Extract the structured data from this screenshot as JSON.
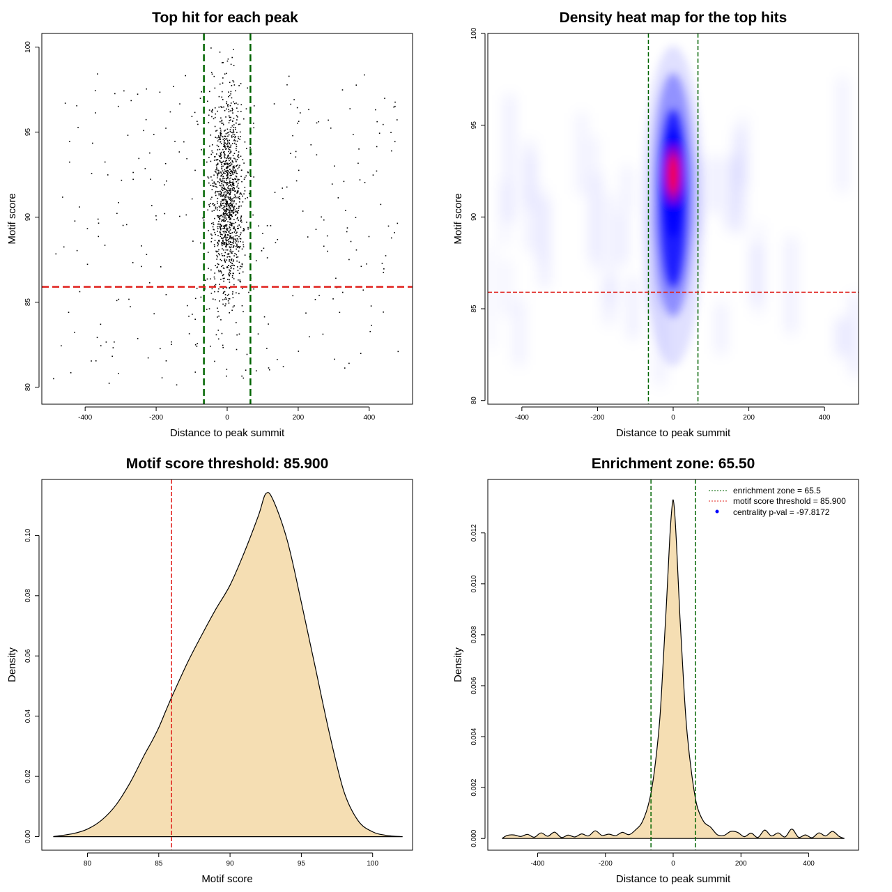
{
  "chart_data": [
    {
      "id": "scatter",
      "type": "scatter",
      "title": "Top hit for each peak",
      "xlabel": "Distance to peak summit",
      "ylabel": "Motif score",
      "xlim": [
        -522,
        522
      ],
      "ylim": [
        79.0,
        100.8
      ],
      "xticks": [
        -400,
        -200,
        0,
        200,
        400
      ],
      "yticks": [
        80,
        85,
        90,
        95,
        100
      ],
      "vlines": [
        -65.5,
        65.5
      ],
      "hline": 85.9,
      "colors": {
        "points": "#000000",
        "vline": "#006400",
        "hline": "#e0201c"
      },
      "n_points": 1500,
      "central_range": [
        -65.5,
        65.5
      ],
      "distribution": "Dense central cluster at distance 0 (scores ~82-100), sparse background hits spread across -500..500 (scores ~80-98)"
    },
    {
      "id": "heatmap",
      "type": "heatmap",
      "title": "Density heat map for the top hits",
      "xlabel": "Distance to peak summit",
      "ylabel": "Motif score",
      "xlim": [
        -490,
        490
      ],
      "ylim": [
        79.8,
        100.0
      ],
      "xticks": [
        -400,
        -200,
        0,
        200,
        400
      ],
      "yticks": [
        80,
        85,
        90,
        95,
        100
      ],
      "vlines": [
        -65.5,
        65.5
      ],
      "hline": 85.9,
      "peak": {
        "x": 0,
        "y": 92.3
      },
      "colors": {
        "low": "#ffffff",
        "mid": "#0000ff",
        "high": "#ff0000",
        "vline": "#006400",
        "hline": "#e0201c"
      }
    },
    {
      "id": "score-density",
      "type": "area",
      "title": "Motif score threshold: 85.900",
      "xlabel": "Motif score",
      "ylabel": "Density",
      "xlim": [
        76.8,
        102.8
      ],
      "ylim": [
        -0.0045,
        0.1186
      ],
      "xticks": [
        80,
        85,
        90,
        95,
        100
      ],
      "yticks": [
        0.0,
        0.02,
        0.04,
        0.06,
        0.08,
        0.1
      ],
      "ytick_labels": [
        "0.00",
        "0.02",
        "0.04",
        "0.06",
        "0.08",
        "0.10"
      ],
      "vline": 85.9,
      "x": [
        77.6,
        79,
        80,
        81,
        82,
        83,
        84,
        84.5,
        85,
        85.5,
        86,
        87,
        88,
        89,
        90,
        91,
        92,
        92.5,
        93,
        94,
        95,
        96,
        97,
        98,
        99,
        100,
        101,
        102.1
      ],
      "y": [
        0.0,
        0.001,
        0.0025,
        0.0055,
        0.0105,
        0.018,
        0.0272,
        0.0315,
        0.0362,
        0.0418,
        0.0473,
        0.0576,
        0.0668,
        0.0755,
        0.0835,
        0.0944,
        0.1067,
        0.1138,
        0.112,
        0.0986,
        0.0778,
        0.0557,
        0.0337,
        0.0148,
        0.0052,
        0.0016,
        0.0004,
        0.0
      ],
      "colors": {
        "fill": "#f5deb3",
        "line": "#000000",
        "vline": "#e0201c"
      }
    },
    {
      "id": "distance-density",
      "type": "area",
      "title": "Enrichment zone: 65.50",
      "xlabel": "Distance to peak summit",
      "ylabel": "Density",
      "xlim": [
        -547,
        547
      ],
      "ylim": [
        -0.00046,
        0.0141
      ],
      "xticks": [
        -400,
        -200,
        0,
        200,
        400
      ],
      "yticks": [
        0.0,
        0.002,
        0.004,
        0.006,
        0.008,
        0.01,
        0.012
      ],
      "ytick_labels": [
        "0.000",
        "0.002",
        "0.004",
        "0.006",
        "0.008",
        "0.010",
        "0.012"
      ],
      "vlines": [
        -65.5,
        65.5
      ],
      "x": [
        -505,
        -490,
        -470,
        -450,
        -430,
        -410,
        -390,
        -370,
        -350,
        -330,
        -310,
        -290,
        -270,
        -250,
        -230,
        -210,
        -190,
        -170,
        -150,
        -130,
        -110,
        -90,
        -70,
        -55,
        -40,
        -30,
        -20,
        -10,
        -5,
        0,
        5,
        10,
        20,
        30,
        40,
        55,
        70,
        90,
        110,
        130,
        150,
        170,
        190,
        210,
        230,
        250,
        270,
        290,
        310,
        330,
        350,
        370,
        390,
        410,
        430,
        450,
        470,
        490,
        505
      ],
      "y": [
        0.0,
        0.00012,
        0.00014,
        8e-05,
        0.00016,
        5e-05,
        0.00022,
        9e-05,
        0.00025,
        4e-05,
        0.00013,
        6e-05,
        0.00018,
        0.0001,
        0.0003,
        0.00012,
        0.00017,
        0.00011,
        0.00024,
        0.00015,
        0.00035,
        0.00068,
        0.0015,
        0.0027,
        0.0046,
        0.0068,
        0.0092,
        0.0118,
        0.0128,
        0.0133,
        0.0127,
        0.0115,
        0.0087,
        0.0063,
        0.0043,
        0.0025,
        0.0013,
        0.00066,
        0.00045,
        0.00015,
        0.00012,
        0.00028,
        0.00024,
        7e-05,
        0.00021,
        4e-05,
        0.00033,
        0.0001,
        0.00022,
        6e-05,
        0.00037,
        5e-05,
        0.00014,
        3e-05,
        0.00022,
        0.0001,
        0.00028,
        8e-05,
        0.0
      ],
      "colors": {
        "fill": "#f5deb3",
        "line": "#000000",
        "vline": "#006400"
      },
      "legend": {
        "position": "top-right",
        "entries": [
          {
            "label": "enrichment zone = 65.5",
            "color": "#006400",
            "style": "dotted-line"
          },
          {
            "label": "motif score threshold = 85.900",
            "color": "#e0201c",
            "style": "dotted-line"
          },
          {
            "label": "centrality p-val = -97.8172",
            "color": "#0000ff",
            "style": "point"
          }
        ]
      }
    }
  ]
}
